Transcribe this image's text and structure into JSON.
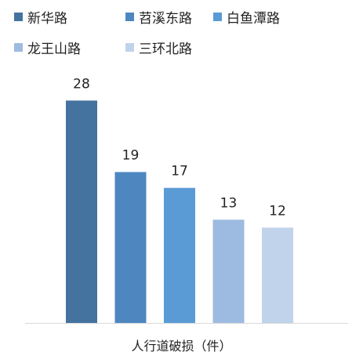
{
  "chart_data": {
    "type": "bar",
    "xlabel": "人行道破损（件）",
    "ylabel": "",
    "legend_position": "top",
    "grid": false,
    "ylim": [
      0,
      30
    ],
    "series": [
      {
        "name": "新华路",
        "value": 28,
        "color": "#44739f"
      },
      {
        "name": "苕溪东路",
        "value": 19,
        "color": "#4e87c0"
      },
      {
        "name": "白鱼潭路",
        "value": 17,
        "color": "#5b9bd5"
      },
      {
        "name": "龙王山路",
        "value": 13,
        "color": "#9dbbe0"
      },
      {
        "name": "三环北路",
        "value": 12,
        "color": "#c1d3eb"
      }
    ]
  }
}
